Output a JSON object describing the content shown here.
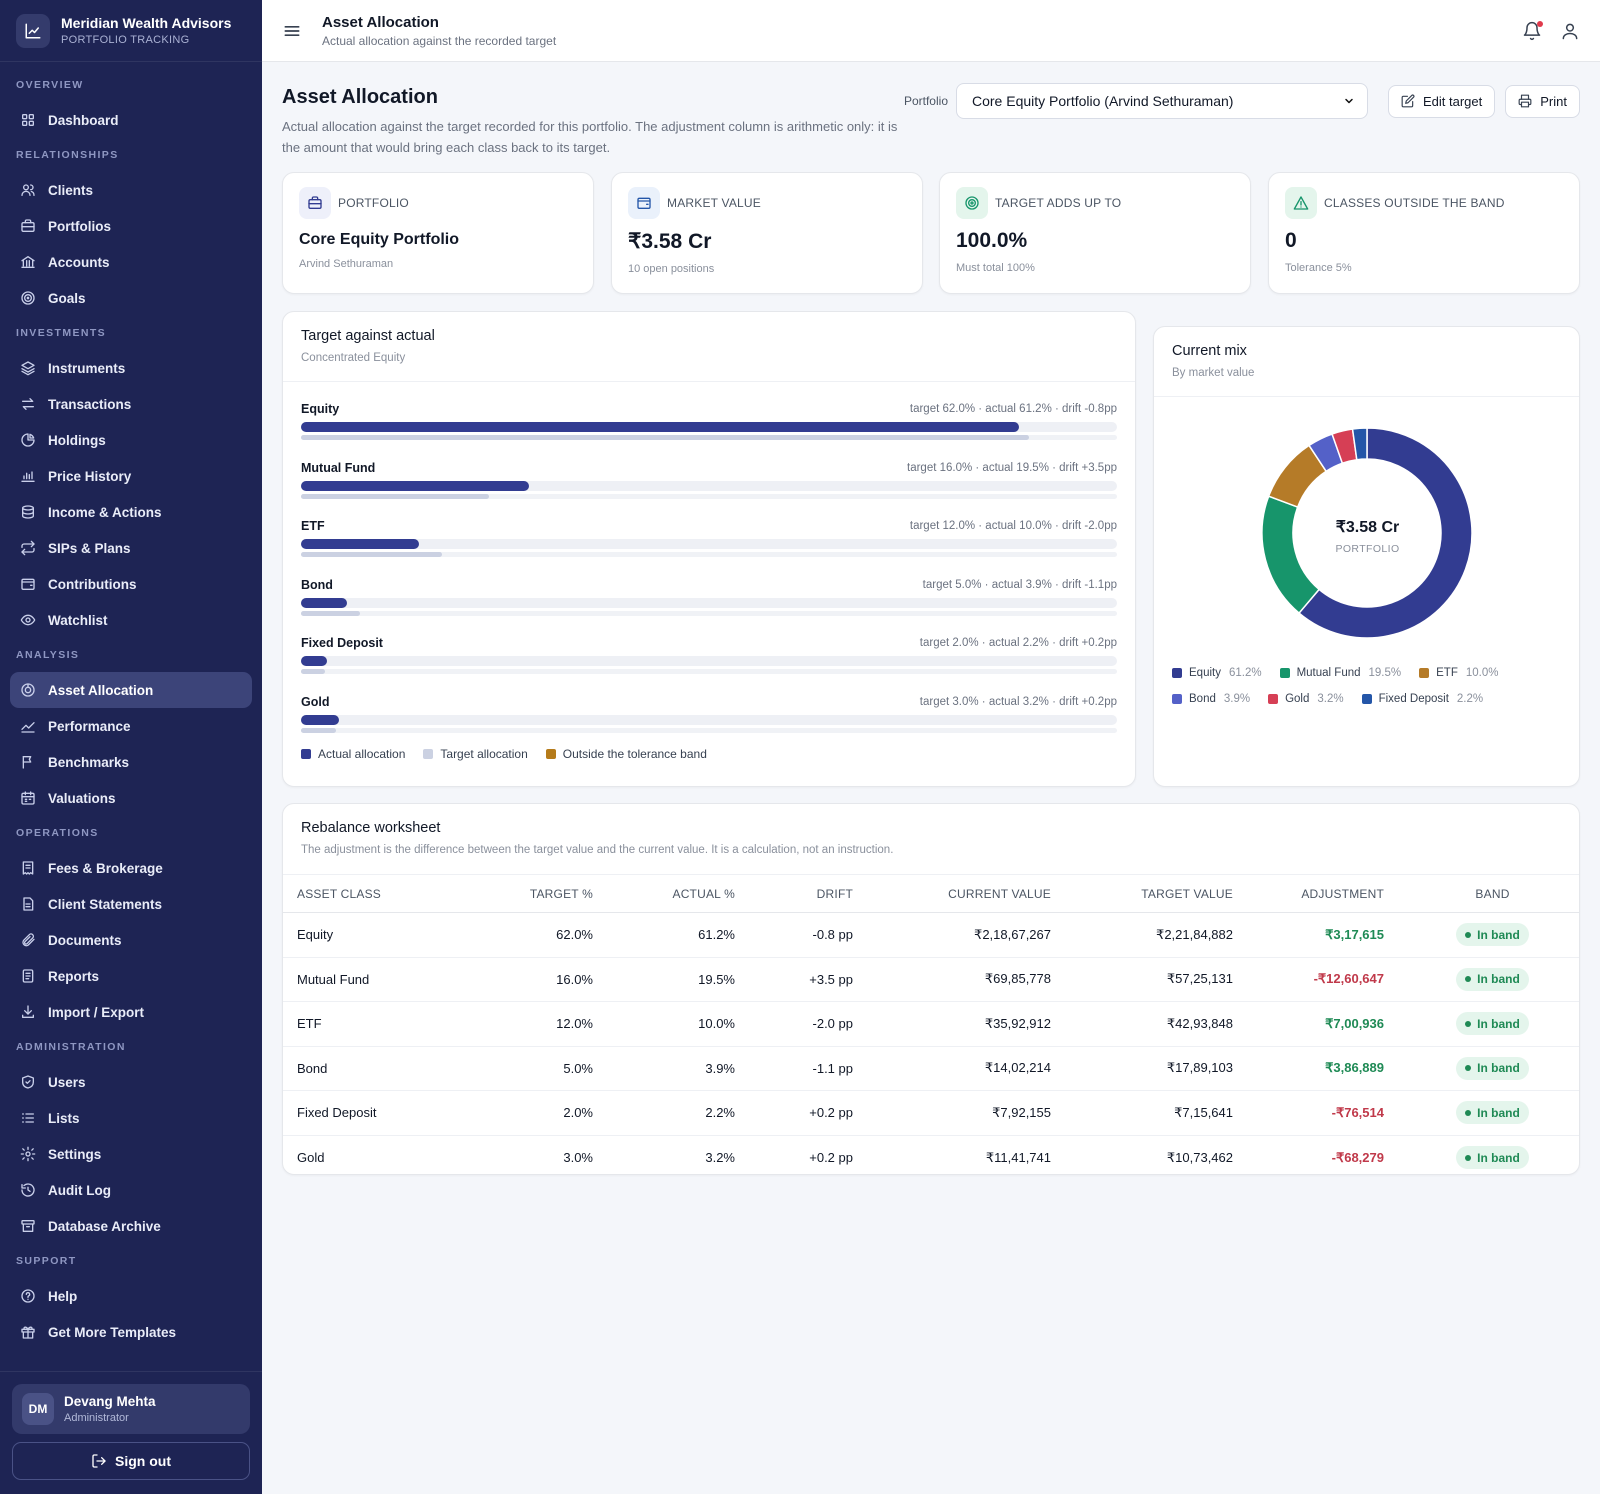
{
  "brand": {
    "title": "Meridian Wealth Advisors",
    "subtitle": "PORTFOLIO TRACKING"
  },
  "nav": {
    "sections": [
      {
        "label": "OVERVIEW",
        "items": [
          {
            "label": "Dashboard",
            "icon": "grid-icon"
          }
        ]
      },
      {
        "label": "RELATIONSHIPS",
        "items": [
          {
            "label": "Clients",
            "icon": "users-icon"
          },
          {
            "label": "Portfolios",
            "icon": "briefcase-icon"
          },
          {
            "label": "Accounts",
            "icon": "bank-icon"
          },
          {
            "label": "Goals",
            "icon": "target-icon"
          }
        ]
      },
      {
        "label": "INVESTMENTS",
        "items": [
          {
            "label": "Instruments",
            "icon": "layers-icon"
          },
          {
            "label": "Transactions",
            "icon": "arrows-icon"
          },
          {
            "label": "Holdings",
            "icon": "pie-icon"
          },
          {
            "label": "Price History",
            "icon": "bar-chart-icon"
          },
          {
            "label": "Income & Actions",
            "icon": "coins-icon"
          },
          {
            "label": "SIPs & Plans",
            "icon": "repeat-icon"
          },
          {
            "label": "Contributions",
            "icon": "wallet-icon"
          },
          {
            "label": "Watchlist",
            "icon": "eye-icon"
          }
        ]
      },
      {
        "label": "ANALYSIS",
        "items": [
          {
            "label": "Asset Allocation",
            "icon": "allocation-icon",
            "active": true
          },
          {
            "label": "Performance",
            "icon": "trend-icon"
          },
          {
            "label": "Benchmarks",
            "icon": "flag-icon"
          },
          {
            "label": "Valuations",
            "icon": "calendar-icon"
          }
        ]
      },
      {
        "label": "OPERATIONS",
        "items": [
          {
            "label": "Fees & Brokerage",
            "icon": "receipt-icon"
          },
          {
            "label": "Client Statements",
            "icon": "file-icon"
          },
          {
            "label": "Documents",
            "icon": "paperclip-icon"
          },
          {
            "label": "Reports",
            "icon": "report-icon"
          },
          {
            "label": "Import / Export",
            "icon": "download-icon"
          }
        ]
      },
      {
        "label": "ADMINISTRATION",
        "items": [
          {
            "label": "Users",
            "icon": "shield-icon"
          },
          {
            "label": "Lists",
            "icon": "list-icon"
          },
          {
            "label": "Settings",
            "icon": "gear-icon"
          },
          {
            "label": "Audit Log",
            "icon": "history-icon"
          },
          {
            "label": "Database Archive",
            "icon": "archive-icon"
          }
        ]
      },
      {
        "label": "SUPPORT",
        "items": [
          {
            "label": "Help",
            "icon": "help-icon"
          },
          {
            "label": "Get More Templates",
            "icon": "gift-icon"
          }
        ]
      }
    ]
  },
  "user": {
    "initials": "DM",
    "name": "Devang Mehta",
    "role": "Administrator",
    "signout": "Sign out"
  },
  "topbar": {
    "title": "Asset Allocation",
    "subtitle": "Actual allocation against the recorded target"
  },
  "page": {
    "title": "Asset Allocation",
    "description": "Actual allocation against the target recorded for this portfolio. The adjustment column is arithmetic only: it is the amount that would bring each class back to its target.",
    "portfolio_label": "Portfolio",
    "portfolio_selected": "Core Equity Portfolio (Arvind Sethuraman)",
    "edit_label": "Edit target",
    "print_label": "Print"
  },
  "cards": [
    {
      "label": "PORTFOLIO",
      "value": "Core Equity Portfolio",
      "foot": "Arvind Sethuraman",
      "icon": "briefcase-icon"
    },
    {
      "label": "MARKET VALUE",
      "value": "₹3.58 Cr",
      "foot": "10 open positions",
      "icon": "wallet-icon"
    },
    {
      "label": "TARGET ADDS UP TO",
      "value": "100.0%",
      "foot": "Must total 100%",
      "icon": "target-icon"
    },
    {
      "label": "CLASSES OUTSIDE THE BAND",
      "value": "0",
      "foot": "Tolerance 5%",
      "icon": "alert-icon"
    }
  ],
  "target_panel": {
    "title": "Target against actual",
    "subtitle": "Concentrated Equity",
    "rows": [
      {
        "name": "Equity",
        "meta": "target 62.0% · actual 61.2% · drift -0.8pp",
        "actual_fill": 0.88,
        "target_fill": 0.892
      },
      {
        "name": "Mutual Fund",
        "meta": "target 16.0% · actual 19.5% · drift +3.5pp",
        "actual_fill": 0.28,
        "target_fill": 0.23
      },
      {
        "name": "ETF",
        "meta": "target 12.0% · actual 10.0% · drift -2.0pp",
        "actual_fill": 0.144,
        "target_fill": 0.173
      },
      {
        "name": "Bond",
        "meta": "target 5.0% · actual 3.9% · drift -1.1pp",
        "actual_fill": 0.056,
        "target_fill": 0.072
      },
      {
        "name": "Fixed Deposit",
        "meta": "target 2.0% · actual 2.2% · drift +0.2pp",
        "actual_fill": 0.032,
        "target_fill": 0.029
      },
      {
        "name": "Gold",
        "meta": "target 3.0% · actual 3.2% · drift +0.2pp",
        "actual_fill": 0.046,
        "target_fill": 0.043
      }
    ],
    "legend": [
      {
        "label": "Actual allocation",
        "color": "#323c91"
      },
      {
        "label": "Target allocation",
        "color": "#cbd1e2"
      },
      {
        "label": "Outside the tolerance band",
        "color": "#b57b1a"
      }
    ]
  },
  "mix_panel": {
    "title": "Current mix",
    "subtitle": "By market value",
    "center_value": "₹3.58 Cr",
    "center_label": "PORTFOLIO"
  },
  "chart_data": {
    "type": "pie",
    "categories": [
      "Equity",
      "Mutual Fund",
      "ETF",
      "Bond",
      "Gold",
      "Fixed Deposit"
    ],
    "values": [
      61.2,
      19.5,
      10.0,
      3.9,
      3.2,
      2.2
    ],
    "value_labels": [
      "61.2%",
      "19.5%",
      "10.0%",
      "3.9%",
      "3.2%",
      "2.2%"
    ],
    "colors": [
      "#323c91",
      "#17956b",
      "#b57b28",
      "#5461c8",
      "#d63f55",
      "#2456a8"
    ],
    "donut": true
  },
  "worksheet": {
    "title": "Rebalance worksheet",
    "subtitle": "The adjustment is the difference between the target value and the current value. It is a calculation, not an instruction.",
    "columns": [
      "ASSET CLASS",
      "TARGET %",
      "ACTUAL %",
      "DRIFT",
      "CURRENT VALUE",
      "TARGET VALUE",
      "ADJUSTMENT",
      "BAND"
    ],
    "rows": [
      {
        "cls": "Equity",
        "target": "62.0%",
        "actual": "61.2%",
        "drift": "-0.8 pp",
        "current": "₹2,18,67,267",
        "target_value": "₹2,21,84,882",
        "adjustment": "₹3,17,615",
        "sign": "pos",
        "band": "In band"
      },
      {
        "cls": "Mutual Fund",
        "target": "16.0%",
        "actual": "19.5%",
        "drift": "+3.5 pp",
        "current": "₹69,85,778",
        "target_value": "₹57,25,131",
        "adjustment": "-₹12,60,647",
        "sign": "neg",
        "band": "In band"
      },
      {
        "cls": "ETF",
        "target": "12.0%",
        "actual": "10.0%",
        "drift": "-2.0 pp",
        "current": "₹35,92,912",
        "target_value": "₹42,93,848",
        "adjustment": "₹7,00,936",
        "sign": "pos",
        "band": "In band"
      },
      {
        "cls": "Bond",
        "target": "5.0%",
        "actual": "3.9%",
        "drift": "-1.1 pp",
        "current": "₹14,02,214",
        "target_value": "₹17,89,103",
        "adjustment": "₹3,86,889",
        "sign": "pos",
        "band": "In band"
      },
      {
        "cls": "Fixed Deposit",
        "target": "2.0%",
        "actual": "2.2%",
        "drift": "+0.2 pp",
        "current": "₹7,92,155",
        "target_value": "₹7,15,641",
        "adjustment": "-₹76,514",
        "sign": "neg",
        "band": "In band"
      },
      {
        "cls": "Gold",
        "target": "3.0%",
        "actual": "3.2%",
        "drift": "+0.2 pp",
        "current": "₹11,41,741",
        "target_value": "₹10,73,462",
        "adjustment": "-₹68,279",
        "sign": "neg",
        "band": "In band"
      }
    ]
  }
}
